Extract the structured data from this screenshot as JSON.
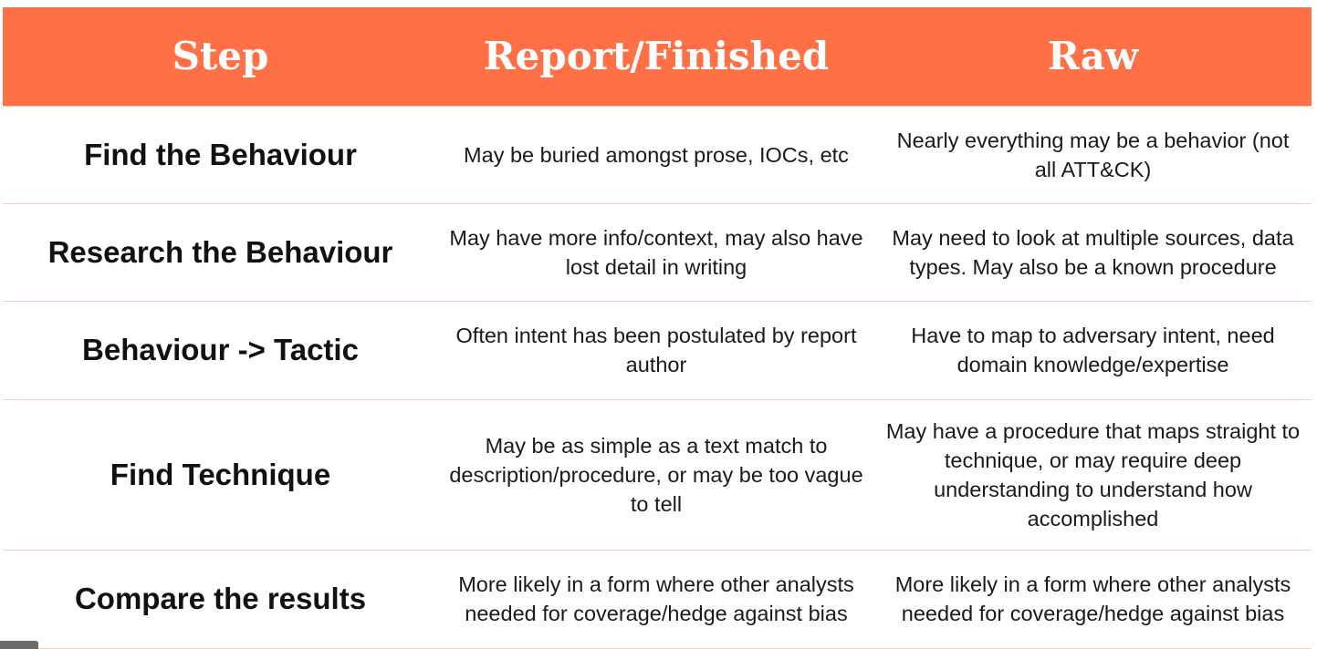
{
  "table": {
    "headers": [
      "Step",
      "Report/Finished",
      "Raw"
    ],
    "rows": [
      {
        "step": "Find the Behaviour",
        "report": "May be buried amongst prose, IOCs, etc",
        "raw": "Nearly everything may be a behavior (not all ATT&CK)"
      },
      {
        "step": "Research the Behaviour",
        "report": "May have more info/context, may also have lost detail in writing",
        "raw": "May need to look at multiple sources, data types. May also be a known procedure"
      },
      {
        "step": "Behaviour -> Tactic",
        "report": "Often intent has been postulated by report author",
        "raw": "Have to map to adversary intent, need domain knowledge/expertise"
      },
      {
        "step": "Find Technique",
        "report": "May be as simple as a text match to description/procedure, or may be too vague to tell",
        "raw": "May have a procedure that maps straight to technique, or may require deep understanding to understand how accomplished"
      },
      {
        "step": "Compare the results",
        "report": "More likely in a form where other analysts needed for coverage/hedge against bias",
        "raw": "More likely in a form where other analysts needed for coverage/hedge against bias"
      }
    ]
  },
  "colors": {
    "header_bg": "#ff7047",
    "header_text": "#ffffff",
    "row_border": "#f7cdbd"
  }
}
